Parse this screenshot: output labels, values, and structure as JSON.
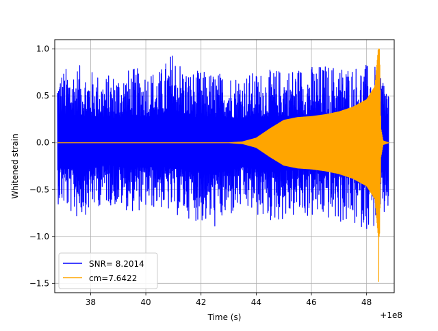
{
  "chart_data": {
    "type": "line",
    "title": "",
    "xlabel": "Time (s)",
    "ylabel": "Whitened strain",
    "x_offset_label": "+1e8",
    "xlim": [
      36.7,
      49.0
    ],
    "ylim": [
      -1.6,
      1.1
    ],
    "x_ticks": [
      38,
      40,
      42,
      44,
      46,
      48
    ],
    "x_tick_labels": [
      "38",
      "40",
      "42",
      "44",
      "46",
      "48"
    ],
    "y_ticks": [
      1.0,
      0.5,
      0.0,
      -0.5,
      -1.0,
      -1.5
    ],
    "y_tick_labels": [
      "1.0",
      "0.5",
      "0.0",
      "−0.5",
      "−1.0",
      "−1.5"
    ],
    "grid": true,
    "legend_position": "lower-left",
    "series": [
      {
        "name": "SNR= 8.2014",
        "color": "#0000ff",
        "description": "whitened detector strain noise",
        "x_range": [
          36.8,
          48.8
        ],
        "envelope_x": [
          36.8,
          37.5,
          38.5,
          39.5,
          40.5,
          41.0,
          41.5,
          42.5,
          43.5,
          44.5,
          45.5,
          46.5,
          47.5,
          48.0,
          48.5,
          48.8
        ],
        "envelope_upper": [
          0.78,
          0.84,
          0.72,
          0.8,
          0.78,
          1.0,
          0.78,
          0.76,
          0.74,
          0.78,
          0.82,
          0.84,
          0.84,
          0.84,
          0.8,
          0.62
        ],
        "envelope_lower": [
          -0.65,
          -0.82,
          -0.65,
          -0.74,
          -0.7,
          -0.78,
          -0.8,
          -0.92,
          -0.72,
          -0.86,
          -0.8,
          -0.82,
          -0.9,
          -0.92,
          -0.92,
          -0.72
        ]
      },
      {
        "name": "cm=7.6422",
        "color": "#ffa500",
        "description": "chirp template",
        "x": [
          36.8,
          43.0,
          43.5,
          44.0,
          44.5,
          45.0,
          45.5,
          46.0,
          46.5,
          47.0,
          47.5,
          48.0,
          48.3,
          48.42,
          48.47,
          48.52,
          48.6,
          48.8
        ],
        "amplitude": [
          0.0,
          0.0,
          0.01,
          0.05,
          0.15,
          0.24,
          0.27,
          0.28,
          0.3,
          0.33,
          0.38,
          0.46,
          0.6,
          1.0,
          1.0,
          0.15,
          0.02,
          0.0
        ],
        "min_value": -1.48
      }
    ]
  }
}
